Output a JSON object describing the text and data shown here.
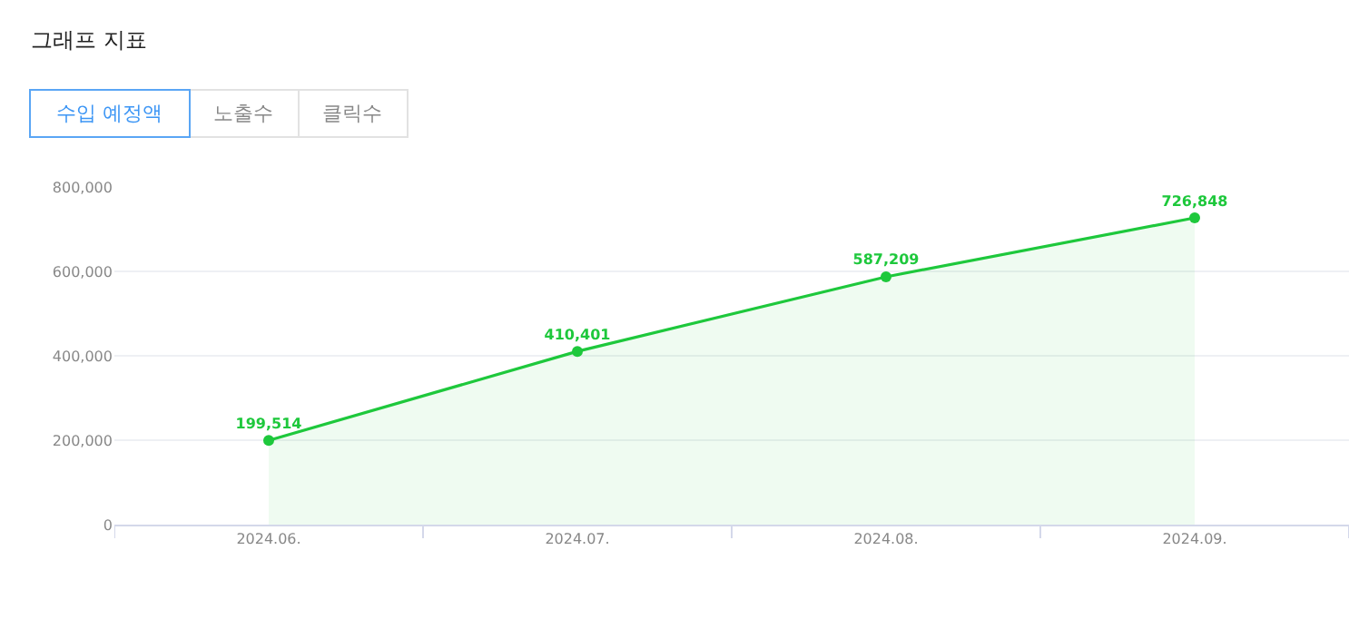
{
  "chart_data": {
    "type": "area",
    "title": "그래프 지표",
    "annotations": [
      "수입 예정액",
      "노출수",
      "클릭수"
    ],
    "categories": [
      "2024.06.",
      "2024.07.",
      "2024.08.",
      "2024.09."
    ],
    "series": [
      {
        "color": "#1ec83c",
        "values": [
          199514,
          410401,
          587209,
          726848
        ],
        "value_labels": [
          "199,514",
          "410,401",
          "587,209",
          "726,848"
        ]
      }
    ],
    "ylim": [
      0,
      800000
    ],
    "yticks": [
      0,
      {
        "value": 200000,
        "label": "200,000"
      },
      {
        "value": 400000,
        "label": "400,000"
      },
      {
        "value": 600000,
        "label": "600,000"
      },
      {
        "value": 800000,
        "label": "800,000"
      }
    ],
    "grid": "y",
    "marker": "circle"
  }
}
